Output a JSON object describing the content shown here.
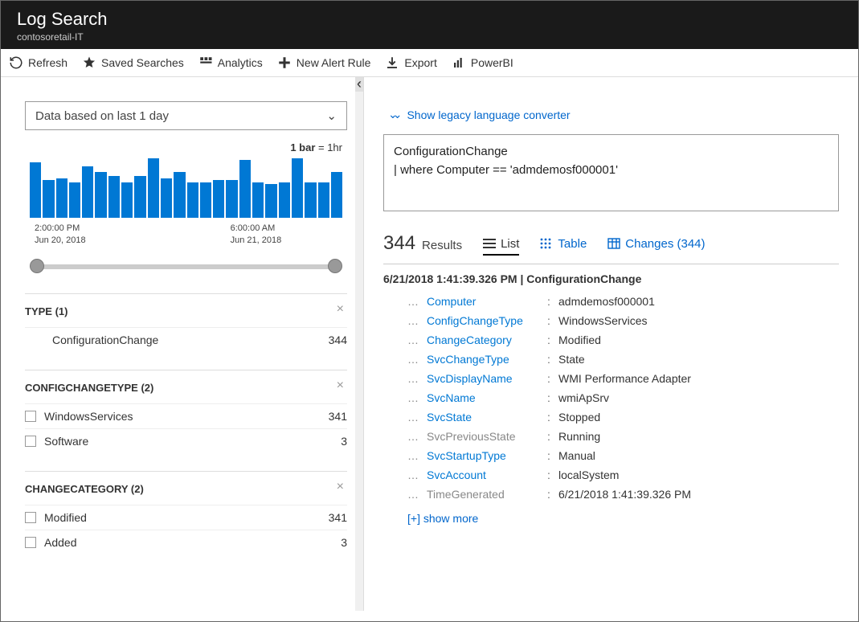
{
  "header": {
    "title": "Log Search",
    "subtitle": "contosoretail-IT"
  },
  "toolbar": {
    "refresh": "Refresh",
    "saved": "Saved Searches",
    "analytics": "Analytics",
    "newAlert": "New Alert Rule",
    "export": "Export",
    "powerbi": "PowerBI"
  },
  "timeRange": {
    "label": "Data based on last 1 day"
  },
  "chart": {
    "hint_prefix": "1 bar",
    "hint_suffix": " = 1hr",
    "bar_color": "#0078d4",
    "bars": [
      56,
      38,
      40,
      36,
      52,
      46,
      42,
      36,
      42,
      60,
      40,
      46,
      36,
      36,
      38,
      38,
      58,
      36,
      34,
      36,
      60,
      36,
      36,
      46
    ],
    "axis": [
      {
        "time": "2:00:00 PM",
        "date": "Jun 20, 2018"
      },
      {
        "time": "6:00:00 AM",
        "date": "Jun 21, 2018"
      }
    ]
  },
  "facets": {
    "type": {
      "title": "TYPE  (1)",
      "rows": [
        {
          "label": "ConfigurationChange",
          "count": "344",
          "check": false
        }
      ]
    },
    "configChangeType": {
      "title": "CONFIGCHANGETYPE  (2)",
      "rows": [
        {
          "label": "WindowsServices",
          "count": "341",
          "check": true
        },
        {
          "label": "Software",
          "count": "3",
          "check": true
        }
      ]
    },
    "changeCategory": {
      "title": "CHANGECATEGORY  (2)",
      "rows": [
        {
          "label": "Modified",
          "count": "341",
          "check": true
        },
        {
          "label": "Added",
          "count": "3",
          "check": true
        }
      ]
    }
  },
  "converter": "Show legacy language converter",
  "query": {
    "line1": "ConfigurationChange",
    "line2": "| where Computer == 'admdemosf000001'"
  },
  "results": {
    "count": "344",
    "label": "Results",
    "tabs": {
      "list": "List",
      "table": "Table",
      "changes": "Changes (344)"
    }
  },
  "detail": {
    "header": "6/21/2018 1:41:39.326 PM | ConfigurationChange",
    "rows": [
      {
        "field": "Computer",
        "value": "admdemosf000001",
        "muted": false
      },
      {
        "field": "ConfigChangeType",
        "value": "WindowsServices",
        "muted": false
      },
      {
        "field": "ChangeCategory",
        "value": "Modified",
        "muted": false
      },
      {
        "field": "SvcChangeType",
        "value": "State",
        "muted": false
      },
      {
        "field": "SvcDisplayName",
        "value": "WMI Performance Adapter",
        "muted": false
      },
      {
        "field": "SvcName",
        "value": "wmiApSrv",
        "muted": false
      },
      {
        "field": "SvcState",
        "value": "Stopped",
        "muted": false
      },
      {
        "field": "SvcPreviousState",
        "value": "Running",
        "muted": true
      },
      {
        "field": "SvcStartupType",
        "value": "Manual",
        "muted": false
      },
      {
        "field": "SvcAccount",
        "value": "localSystem",
        "muted": false
      },
      {
        "field": "TimeGenerated",
        "value": "6/21/2018 1:41:39.326 PM",
        "muted": true
      }
    ],
    "showMore": "[+] show more"
  }
}
